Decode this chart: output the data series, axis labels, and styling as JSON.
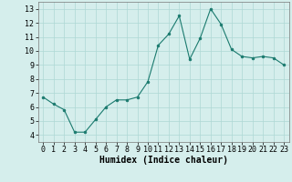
{
  "x": [
    0,
    1,
    2,
    3,
    4,
    5,
    6,
    7,
    8,
    9,
    10,
    11,
    12,
    13,
    14,
    15,
    16,
    17,
    18,
    19,
    20,
    21,
    22,
    23
  ],
  "y": [
    6.7,
    6.2,
    5.8,
    4.2,
    4.2,
    5.1,
    6.0,
    6.5,
    6.5,
    6.7,
    7.8,
    10.4,
    11.2,
    12.5,
    9.4,
    10.9,
    13.0,
    11.9,
    10.1,
    9.6,
    9.5,
    9.6,
    9.5,
    9.0
  ],
  "xlabel": "Humidex (Indice chaleur)",
  "ylim": [
    3.5,
    13.5
  ],
  "xlim": [
    -0.5,
    23.5
  ],
  "yticks": [
    4,
    5,
    6,
    7,
    8,
    9,
    10,
    11,
    12,
    13
  ],
  "xticks": [
    0,
    1,
    2,
    3,
    4,
    5,
    6,
    7,
    8,
    9,
    10,
    11,
    12,
    13,
    14,
    15,
    16,
    17,
    18,
    19,
    20,
    21,
    22,
    23
  ],
  "line_color": "#1a7a6e",
  "marker_color": "#1a7a6e",
  "bg_color": "#d5eeec",
  "grid_color": "#aed8d4",
  "xlabel_fontsize": 7,
  "tick_fontsize": 6
}
